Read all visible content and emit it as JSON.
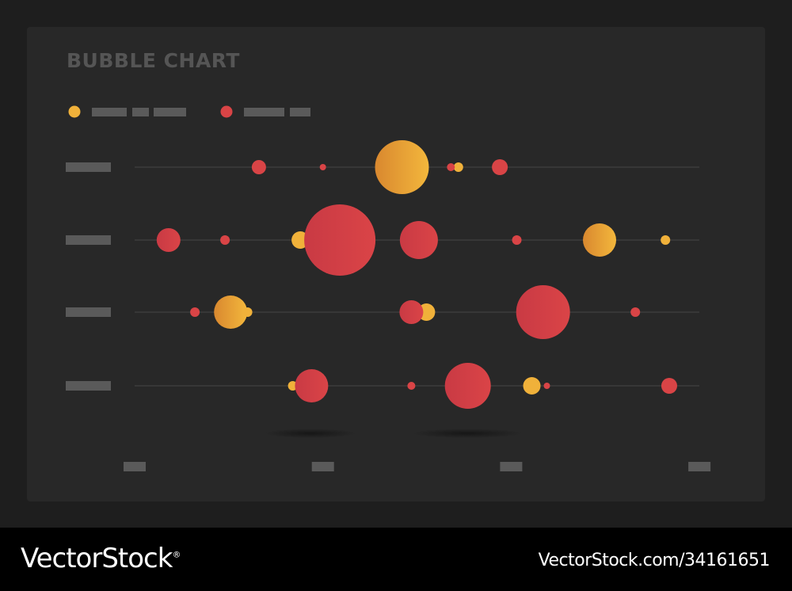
{
  "chart_data": {
    "type": "scatter",
    "title": "BUBBLE CHART",
    "xlim": [
      0,
      3
    ],
    "row_count": 4,
    "colors": {
      "yellow": "#f0b13a",
      "red": "#d94446",
      "line": "#3c3c3c",
      "placeholder": "#5a5a5a"
    },
    "series": [
      {
        "name": "",
        "color": "#f0b13a",
        "points": [
          {
            "x": 1.42,
            "row": 1,
            "size": 34
          },
          {
            "x": 1.72,
            "row": 1,
            "size": 6
          },
          {
            "x": 0.88,
            "row": 2,
            "size": 11
          },
          {
            "x": 2.47,
            "row": 2,
            "size": 21
          },
          {
            "x": 2.82,
            "row": 2,
            "size": 6
          },
          {
            "x": 0.51,
            "row": 3,
            "size": 21
          },
          {
            "x": 0.6,
            "row": 3,
            "size": 6
          },
          {
            "x": 1.55,
            "row": 3,
            "size": 11
          },
          {
            "x": 0.84,
            "row": 4,
            "size": 6
          },
          {
            "x": 2.11,
            "row": 4,
            "size": 11
          }
        ]
      },
      {
        "name": "",
        "color": "#d94446",
        "points": [
          {
            "x": 0.66,
            "row": 1,
            "size": 9
          },
          {
            "x": 1.0,
            "row": 1,
            "size": 4
          },
          {
            "x": 1.68,
            "row": 1,
            "size": 5
          },
          {
            "x": 1.94,
            "row": 1,
            "size": 10
          },
          {
            "x": 0.18,
            "row": 2,
            "size": 15
          },
          {
            "x": 0.48,
            "row": 2,
            "size": 6
          },
          {
            "x": 1.09,
            "row": 2,
            "size": 45
          },
          {
            "x": 1.51,
            "row": 2,
            "size": 24
          },
          {
            "x": 2.03,
            "row": 2,
            "size": 6
          },
          {
            "x": 0.32,
            "row": 3,
            "size": 6
          },
          {
            "x": 1.47,
            "row": 3,
            "size": 15
          },
          {
            "x": 2.17,
            "row": 3,
            "size": 34
          },
          {
            "x": 2.66,
            "row": 3,
            "size": 6
          },
          {
            "x": 0.94,
            "row": 4,
            "size": 21
          },
          {
            "x": 1.47,
            "row": 4,
            "size": 5
          },
          {
            "x": 1.77,
            "row": 4,
            "size": 29
          },
          {
            "x": 2.19,
            "row": 4,
            "size": 4
          },
          {
            "x": 2.84,
            "row": 4,
            "size": 10
          }
        ]
      }
    ]
  },
  "footer": {
    "brand": "VectorStock",
    "brand_mark": "®",
    "url": "VectorStock.com/34161651"
  }
}
